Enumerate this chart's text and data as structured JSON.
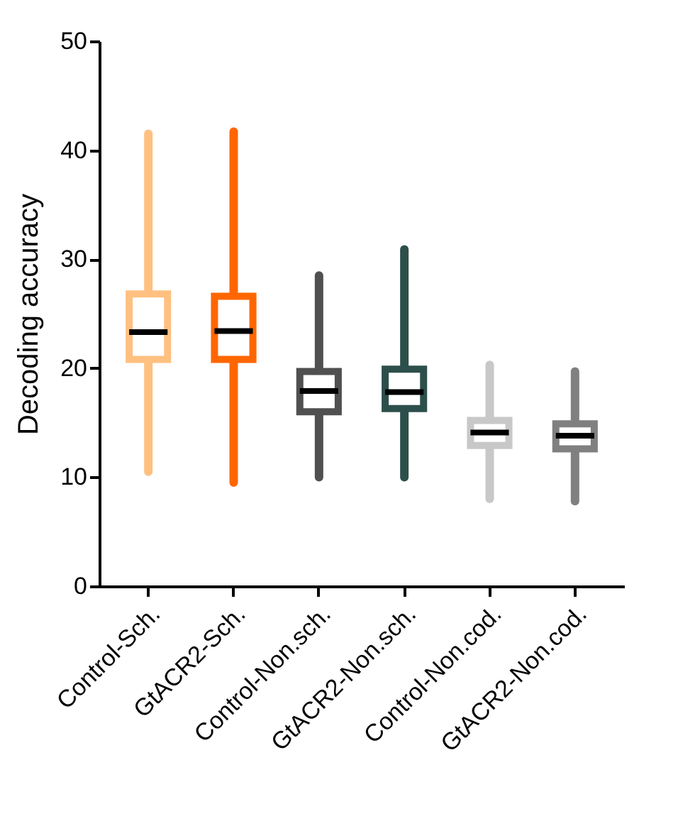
{
  "chart_data": {
    "type": "box",
    "ylabel": "Decoding accuracy",
    "categories": [
      "Control-Sch.",
      "GtACR2-Sch.",
      "Control-Non.sch.",
      "GtACR2-Non.sch.",
      "Control-Non.cod.",
      "GtACR2-Non.cod."
    ],
    "colors": [
      "#ffc080",
      "#ff6600",
      "#505050",
      "#2d4f4b",
      "#c8c8c8",
      "#808080"
    ],
    "boxes": [
      {
        "low": 10.5,
        "q1": 20.8,
        "median": 23.3,
        "q3": 26.8,
        "high": 41.5
      },
      {
        "low": 9.5,
        "q1": 20.8,
        "median": 23.4,
        "q3": 26.6,
        "high": 41.7
      },
      {
        "low": 10,
        "q1": 16,
        "median": 17.9,
        "q3": 19.7,
        "high": 28.5
      },
      {
        "low": 10,
        "q1": 16.3,
        "median": 17.8,
        "q3": 19.9,
        "high": 30.9
      },
      {
        "low": 8,
        "q1": 12.9,
        "median": 14.1,
        "q3": 15.2,
        "high": 20.3
      },
      {
        "low": 7.8,
        "q1": 12.6,
        "median": 13.8,
        "q3": 14.9,
        "high": 19.7
      }
    ],
    "ylim": [
      0,
      50
    ],
    "yticks": [
      0,
      10,
      20,
      30,
      40,
      50
    ],
    "grid": false
  }
}
